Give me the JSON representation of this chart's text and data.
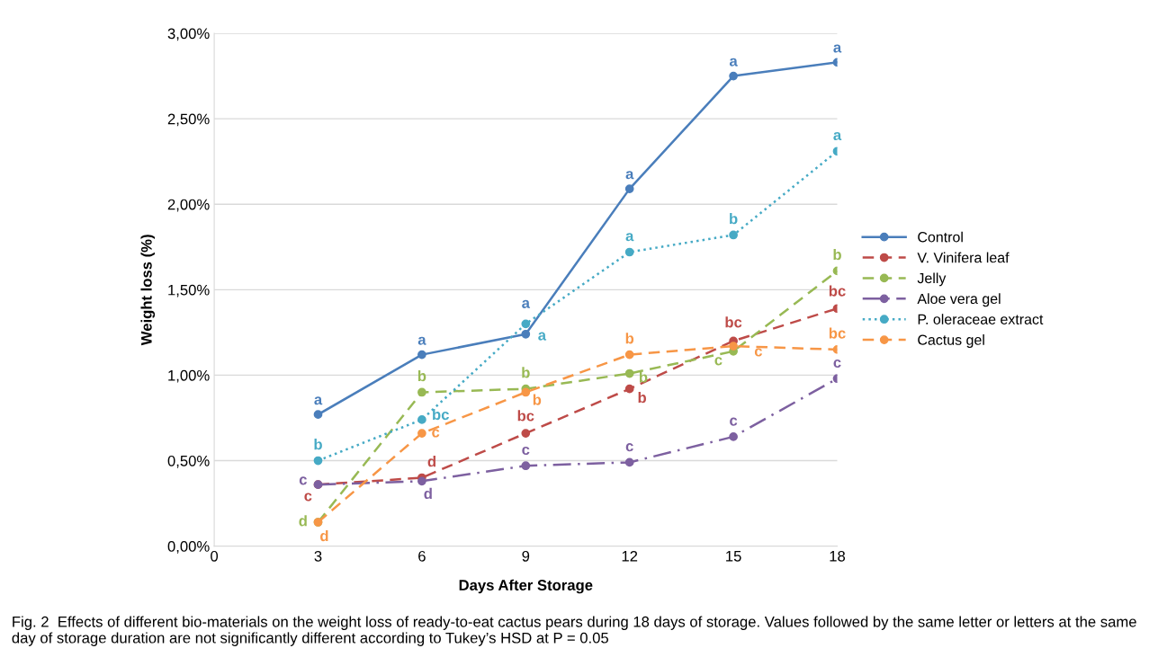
{
  "chart_data": {
    "type": "line",
    "xlabel": "Days After Storage",
    "ylabel": "Weight loss (%)",
    "x": [
      3,
      6,
      9,
      12,
      15,
      18
    ],
    "xlim": [
      0,
      18
    ],
    "xticks": [
      0,
      3,
      6,
      9,
      12,
      15,
      18
    ],
    "ylim": [
      0,
      3
    ],
    "yticks": [
      {
        "value": 0,
        "label": "0,00%"
      },
      {
        "value": 0.5,
        "label": "0,50%"
      },
      {
        "value": 1,
        "label": "1,00%"
      },
      {
        "value": 1.5,
        "label": "1,50%"
      },
      {
        "value": 2,
        "label": "2,00%"
      },
      {
        "value": 2.5,
        "label": "2,50%"
      },
      {
        "value": 3,
        "label": "3,00%"
      }
    ],
    "grid": "y",
    "legend": "right",
    "marker": "circle",
    "series": [
      {
        "name": "Control",
        "color": "#4a7ebb",
        "line_style": "solid",
        "values": [
          0.77,
          1.12,
          1.24,
          2.09,
          2.75,
          2.83
        ],
        "value_labels": [
          "a",
          "a",
          "a",
          "a",
          "a",
          "a"
        ]
      },
      {
        "name": "V. Vinifera leaf",
        "color": "#be4b48",
        "line_style": "dashed",
        "values": [
          0.36,
          0.4,
          0.66,
          0.92,
          1.2,
          1.39
        ],
        "value_labels": [
          "c",
          "d",
          "bc",
          "b",
          "bc",
          "bc"
        ]
      },
      {
        "name": "Jelly",
        "color": "#98b954",
        "line_style": "dashed",
        "values": [
          0.14,
          0.9,
          0.92,
          1.01,
          1.14,
          1.61
        ],
        "value_labels": [
          "d",
          "b",
          "b",
          "b",
          "c",
          "b"
        ]
      },
      {
        "name": "Aloe vera gel",
        "color": "#7d60a0",
        "line_style": "dashdot",
        "values": [
          0.36,
          0.38,
          0.47,
          0.49,
          0.64,
          0.98
        ],
        "value_labels": [
          "c",
          "d",
          "c",
          "c",
          "c",
          "c"
        ]
      },
      {
        "name": "P. oleraceae extract",
        "color": "#46aac5",
        "line_style": "dotted",
        "values": [
          0.5,
          0.74,
          1.3,
          1.72,
          1.82,
          2.31
        ],
        "value_labels": [
          "b",
          "bc",
          "a",
          "a",
          "b",
          "a"
        ]
      },
      {
        "name": "Cactus gel",
        "color": "#f79646",
        "line_style": "dashed",
        "values": [
          0.14,
          0.66,
          0.9,
          1.12,
          1.17,
          1.15
        ],
        "value_labels": [
          "d",
          "c",
          "b",
          "b",
          "c",
          "bc"
        ]
      }
    ],
    "annotations": [
      "Fig. 2  Effects of different bio-materials on the weight loss of ready-to-eat cactus pears during 18 days of storage. Values followed by the same letter or letters at the same day of storage duration are not significantly different according to Tukey’s HSD at P = 0.05"
    ]
  }
}
